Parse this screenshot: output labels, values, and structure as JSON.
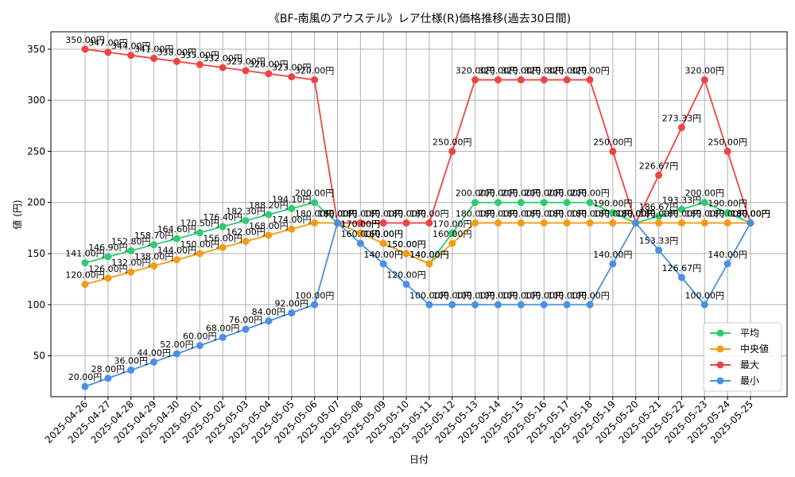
{
  "chart_data": {
    "type": "line",
    "title": "《BF-南風のアウステル》レア仕様(R)価格推移(過去30日間)",
    "xlabel": "日付",
    "ylabel": "値 (円)",
    "value_suffix": "円",
    "ylim": [
      10,
      367
    ],
    "yticks": [
      50,
      100,
      150,
      200,
      250,
      300,
      350
    ],
    "grid": true,
    "legend_position": "lower-right",
    "categories": [
      "2025-04-26",
      "2025-04-27",
      "2025-04-28",
      "2025-04-29",
      "2025-04-30",
      "2025-05-01",
      "2025-05-02",
      "2025-05-03",
      "2025-05-04",
      "2025-05-05",
      "2025-05-06",
      "2025-05-07",
      "2025-05-08",
      "2025-05-09",
      "2025-05-10",
      "2025-05-11",
      "2025-05-12",
      "2025-05-13",
      "2025-05-14",
      "2025-05-15",
      "2025-05-16",
      "2025-05-17",
      "2025-05-18",
      "2025-05-19",
      "2025-05-20",
      "2025-05-21",
      "2025-05-22",
      "2025-05-23",
      "2025-05-24",
      "2025-05-25"
    ],
    "series": [
      {
        "name": "平均",
        "color": "#2ecc71",
        "values": [
          141,
          146.9,
          152.8,
          158.7,
          164.6,
          170.5,
          176.4,
          182.3,
          188.2,
          194.1,
          200,
          180,
          170,
          160,
          150,
          140,
          170,
          200,
          200,
          200,
          200,
          200,
          200,
          190,
          180,
          186.67,
          193.33,
          200,
          190,
          180
        ]
      },
      {
        "name": "中央値",
        "color": "#f39c12",
        "values": [
          120,
          126,
          132,
          138,
          144,
          150,
          156,
          162,
          168,
          174,
          180,
          180,
          170,
          160,
          150,
          140,
          160,
          180,
          180,
          180,
          180,
          180,
          180,
          180,
          180,
          180,
          180,
          180,
          180,
          180
        ]
      },
      {
        "name": "最大",
        "color": "#ef4444",
        "values": [
          350,
          347,
          344,
          341,
          338,
          335,
          332,
          329,
          326,
          323,
          320,
          180,
          180,
          180,
          180,
          180,
          250,
          320,
          320,
          320,
          320,
          320,
          320,
          250,
          180,
          226.67,
          273.33,
          320,
          250,
          180
        ]
      },
      {
        "name": "最小",
        "color": "#4a90e2",
        "values": [
          20,
          28,
          36,
          44,
          52,
          60,
          68,
          76,
          84,
          92,
          100,
          180,
          160,
          140,
          120,
          100,
          100,
          100,
          100,
          100,
          100,
          100,
          100,
          140,
          180,
          153.33,
          126.67,
          100,
          140,
          180
        ]
      }
    ]
  }
}
